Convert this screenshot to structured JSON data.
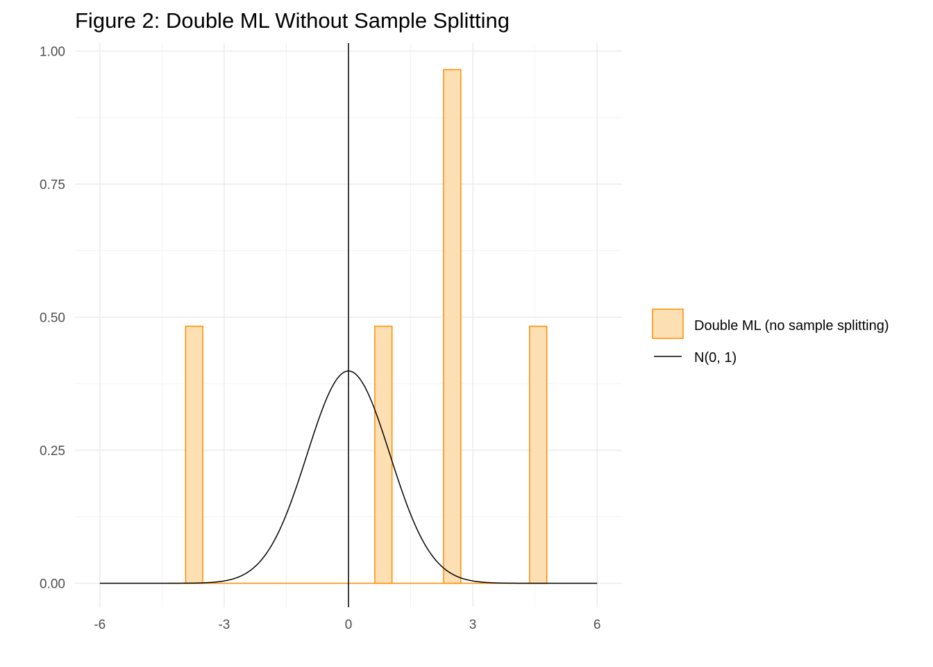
{
  "chart_data": {
    "type": "bar",
    "title": "Figure 2: Double ML Without Sample Splitting",
    "xlabel": "",
    "ylabel": "",
    "xlim": [
      -6.6,
      6.6
    ],
    "ylim": [
      -0.045,
      1.015
    ],
    "x_ticks": [
      -6,
      -3,
      0,
      3,
      6
    ],
    "x_tick_labels": [
      "-6",
      "-3",
      "0",
      "3",
      "6"
    ],
    "y_ticks": [
      0,
      0.25,
      0.5,
      0.75,
      1.0
    ],
    "y_tick_labels": [
      "0.00",
      "0.25",
      "0.50",
      "0.75",
      "1.00"
    ],
    "grid": true,
    "legend_position": "right",
    "histogram": {
      "name": "Double ML (no sample splitting)",
      "bin_width": 0.415,
      "bins": [
        {
          "x0": -3.93,
          "x1": -3.515,
          "density": 0.483
        },
        {
          "x0": 0.635,
          "x1": 1.05,
          "density": 0.483
        },
        {
          "x0": 2.295,
          "x1": 2.71,
          "density": 0.965
        },
        {
          "x0": 4.37,
          "x1": 4.785,
          "density": 0.483
        }
      ],
      "baseline_range": [
        -4.35,
        4.785
      ],
      "fill_color": "#FDDFB4",
      "edge_color": "#FF8C00"
    },
    "density_curve": {
      "name": "N(0, 1)",
      "mean": 0,
      "sd": 1,
      "x_range": [
        -6,
        6
      ],
      "color": "#000000"
    },
    "reference_line": {
      "x": 0,
      "color": "#000000"
    }
  }
}
